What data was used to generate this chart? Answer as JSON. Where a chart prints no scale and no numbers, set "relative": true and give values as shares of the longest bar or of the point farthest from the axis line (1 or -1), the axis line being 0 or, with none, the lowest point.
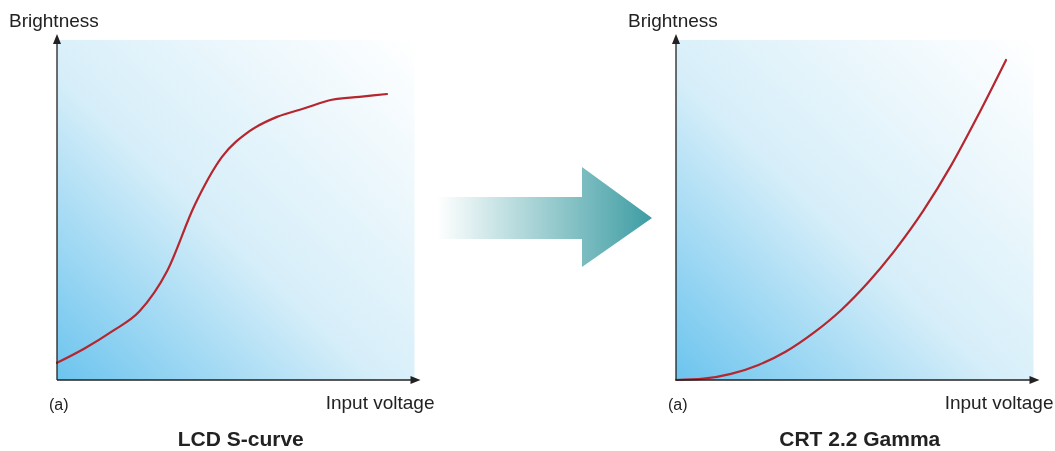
{
  "chart_data": [
    {
      "type": "line",
      "title": "LCD S-curve",
      "xlabel": "Input voltage",
      "ylabel": "Brightness",
      "annotations": [
        "(a)"
      ],
      "relative": true,
      "categories": [
        null,
        null,
        null,
        null,
        null,
        null,
        null,
        null,
        null,
        null,
        null,
        null,
        null,
        null
      ],
      "series": [
        {
          "color": "#b5262e",
          "values": [
            0.06,
            0.11,
            0.17,
            0.24,
            0.38,
            0.61,
            0.78,
            0.87,
            0.92,
            0.95,
            0.98,
            0.99,
            1.0,
            null
          ]
        }
      ]
    },
    {
      "type": "line",
      "title": "CRT 2.2 Gamma",
      "xlabel": "Input voltage",
      "ylabel": "Brightness",
      "annotations": [
        "(a)"
      ],
      "relative": true,
      "categories": [
        null,
        null,
        null,
        null,
        null,
        null,
        null,
        null,
        null,
        null,
        null,
        null,
        null,
        null
      ],
      "series": [
        {
          "color": "#b5262e",
          "values": [
            0,
            0.004,
            0.019,
            0.047,
            0.089,
            0.147,
            0.218,
            0.306,
            0.41,
            0.53,
            0.67,
            0.83,
            1.0,
            null
          ]
        }
      ]
    }
  ]
}
